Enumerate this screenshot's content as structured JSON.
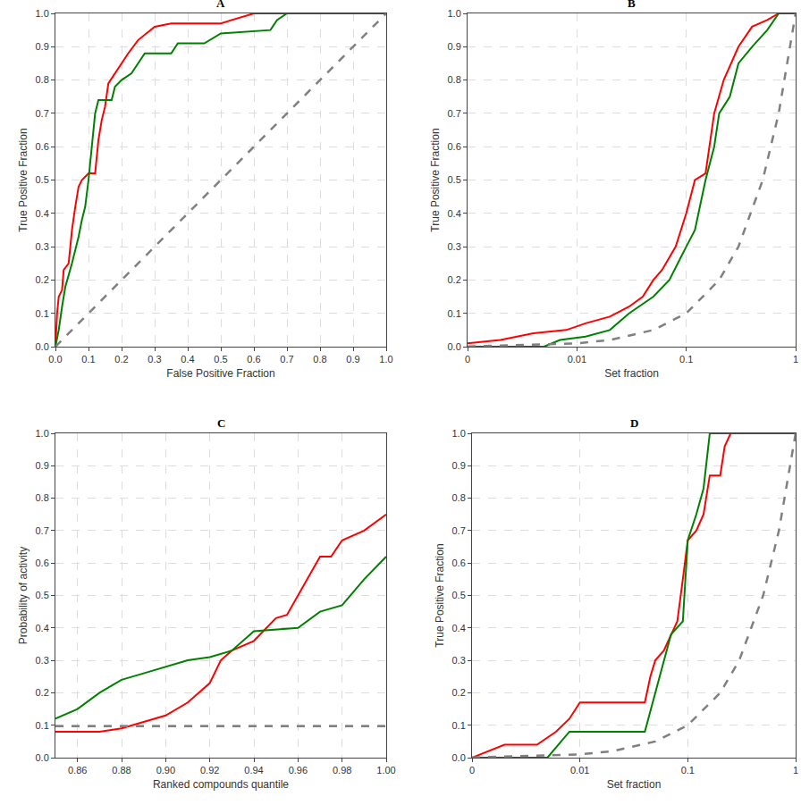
{
  "chart_data": [
    {
      "type": "line",
      "title": "A",
      "x_label": "False Positive Fraction",
      "y_label": "True Positive Fraction",
      "xlim": [
        0,
        1
      ],
      "ylim": [
        0,
        1
      ],
      "grid": true,
      "xticks": [
        {
          "value": 0,
          "label": "0.0"
        },
        0.1,
        0.2,
        0.3,
        0.4,
        0.5,
        0.6,
        0.7,
        0.8,
        0.9,
        {
          "value": 1,
          "label": "1.0"
        }
      ],
      "yticks": [
        {
          "value": 0,
          "label": "0.0"
        },
        0.1,
        0.2,
        0.3,
        0.4,
        0.5,
        0.6,
        0.7,
        0.8,
        0.9,
        {
          "value": 1,
          "label": "1.0"
        }
      ],
      "series": [
        {
          "color": "#ff0000",
          "line_style": "solid",
          "x": [
            0,
            0.005,
            0.01,
            0.02,
            0.025,
            0.04,
            0.045,
            0.05,
            0.06,
            0.07,
            0.08,
            0.1,
            0.12,
            0.13,
            0.14,
            0.15,
            0.16,
            0.18,
            0.2,
            0.22,
            0.25,
            0.3,
            0.35,
            0.5,
            0.6,
            1
          ],
          "values": [
            0,
            0.1,
            0.15,
            0.17,
            0.23,
            0.25,
            0.3,
            0.35,
            0.42,
            0.48,
            0.5,
            0.52,
            0.52,
            0.62,
            0.68,
            0.72,
            0.79,
            0.82,
            0.85,
            0.88,
            0.92,
            0.96,
            0.97,
            0.97,
            1,
            1
          ]
        },
        {
          "color": "#008000",
          "line_style": "solid",
          "x": [
            0,
            0.01,
            0.02,
            0.03,
            0.05,
            0.07,
            0.08,
            0.09,
            0.1,
            0.11,
            0.12,
            0.13,
            0.17,
            0.18,
            0.2,
            0.23,
            0.27,
            0.35,
            0.37,
            0.45,
            0.5,
            0.65,
            0.67,
            0.7,
            1
          ],
          "values": [
            0,
            0.05,
            0.12,
            0.18,
            0.25,
            0.33,
            0.38,
            0.42,
            0.5,
            0.6,
            0.7,
            0.74,
            0.74,
            0.78,
            0.8,
            0.82,
            0.88,
            0.88,
            0.91,
            0.91,
            0.94,
            0.95,
            0.98,
            1,
            1
          ]
        },
        {
          "color": "#808080",
          "line_style": "dash",
          "x": [
            0,
            1
          ],
          "values": [
            0,
            1
          ]
        }
      ]
    },
    {
      "type": "line",
      "title": "B",
      "x_label": "Set fraction",
      "y_label": "True Positive Fraction",
      "log": "x",
      "xlim": [
        0.001,
        1
      ],
      "ylim": [
        0,
        1
      ],
      "grid": true,
      "xticks": [
        {
          "value": 0.001,
          "label": "0"
        },
        0.01,
        0.1,
        1
      ],
      "yticks": [
        {
          "value": 0,
          "label": "0.0"
        },
        0.1,
        0.2,
        0.3,
        0.4,
        0.5,
        0.6,
        0.7,
        0.8,
        0.9,
        {
          "value": 1,
          "label": "1.0"
        }
      ],
      "series": [
        {
          "color": "#ff0000",
          "line_style": "solid",
          "x": [
            0.001,
            0.002,
            0.004,
            0.008,
            0.012,
            0.02,
            0.03,
            0.04,
            0.05,
            0.06,
            0.08,
            0.1,
            0.12,
            0.15,
            0.18,
            0.22,
            0.3,
            0.4,
            0.55,
            0.7,
            1
          ],
          "values": [
            0.01,
            0.02,
            0.04,
            0.05,
            0.07,
            0.09,
            0.12,
            0.15,
            0.2,
            0.23,
            0.3,
            0.4,
            0.5,
            0.52,
            0.7,
            0.8,
            0.9,
            0.96,
            0.98,
            1,
            1
          ]
        },
        {
          "color": "#008000",
          "line_style": "solid",
          "x": [
            0.001,
            0.005,
            0.007,
            0.012,
            0.02,
            0.03,
            0.05,
            0.07,
            0.1,
            0.12,
            0.15,
            0.18,
            0.2,
            0.25,
            0.3,
            0.4,
            0.55,
            0.7,
            1
          ],
          "values": [
            0,
            0,
            0.02,
            0.03,
            0.05,
            0.1,
            0.15,
            0.2,
            0.3,
            0.35,
            0.5,
            0.6,
            0.7,
            0.75,
            0.85,
            0.9,
            0.95,
            1,
            1
          ]
        },
        {
          "color": "#808080",
          "line_style": "dash",
          "x": [
            0.001,
            0.01,
            0.02,
            0.05,
            0.1,
            0.2,
            0.3,
            0.5,
            0.7,
            1
          ],
          "values": [
            0.001,
            0.01,
            0.02,
            0.05,
            0.1,
            0.2,
            0.3,
            0.5,
            0.7,
            1
          ]
        }
      ]
    },
    {
      "type": "line",
      "title": "C",
      "x_label": "Ranked compounds quantile",
      "y_label": "Probability of activity",
      "xlim": [
        0.85,
        1
      ],
      "ylim": [
        0,
        1
      ],
      "grid": true,
      "xticks": [
        0.86,
        0.88,
        {
          "value": 0.9,
          "label": "0.90"
        },
        0.92,
        0.94,
        0.96,
        0.98,
        {
          "value": 1,
          "label": "1.00"
        }
      ],
      "yticks": [
        {
          "value": 0,
          "label": "0.0"
        },
        0.1,
        0.2,
        0.3,
        0.4,
        0.5,
        0.6,
        0.7,
        0.8,
        0.9,
        {
          "value": 1,
          "label": "1.0"
        }
      ],
      "series": [
        {
          "color": "#ff0000",
          "line_style": "solid",
          "x": [
            0.85,
            0.87,
            0.88,
            0.89,
            0.9,
            0.91,
            0.92,
            0.925,
            0.93,
            0.94,
            0.95,
            0.955,
            0.96,
            0.97,
            0.975,
            0.98,
            0.99,
            1
          ],
          "values": [
            0.08,
            0.08,
            0.09,
            0.11,
            0.13,
            0.17,
            0.23,
            0.3,
            0.33,
            0.36,
            0.43,
            0.44,
            0.5,
            0.62,
            0.62,
            0.67,
            0.7,
            0.75
          ]
        },
        {
          "color": "#008000",
          "line_style": "solid",
          "x": [
            0.85,
            0.86,
            0.87,
            0.88,
            0.89,
            0.9,
            0.91,
            0.92,
            0.93,
            0.94,
            0.96,
            0.97,
            0.98,
            0.99,
            1
          ],
          "values": [
            0.12,
            0.15,
            0.2,
            0.24,
            0.26,
            0.28,
            0.3,
            0.31,
            0.33,
            0.39,
            0.4,
            0.45,
            0.47,
            0.55,
            0.62
          ]
        },
        {
          "color": "#808080",
          "line_style": "dash",
          "x": [
            0.85,
            1
          ],
          "values": [
            0.097,
            0.097
          ]
        }
      ]
    },
    {
      "type": "line",
      "title": "D",
      "x_label": "Set fraction",
      "y_label": "True Positive Fraction",
      "log": "x",
      "xlim": [
        0.001,
        1
      ],
      "ylim": [
        0,
        1
      ],
      "grid": true,
      "xticks": [
        {
          "value": 0.001,
          "label": "0"
        },
        0.01,
        0.1,
        1
      ],
      "yticks": [
        {
          "value": 0,
          "label": "0.0"
        },
        0.1,
        0.2,
        0.3,
        0.4,
        0.5,
        0.6,
        0.7,
        0.8,
        0.9,
        {
          "value": 1,
          "label": "1.0"
        }
      ],
      "series": [
        {
          "color": "#ff0000",
          "line_style": "solid",
          "x": [
            0.001,
            0.002,
            0.004,
            0.006,
            0.008,
            0.01,
            0.02,
            0.04,
            0.045,
            0.05,
            0.06,
            0.07,
            0.08,
            0.09,
            0.1,
            0.12,
            0.14,
            0.16,
            0.2,
            0.22,
            0.25,
            1
          ],
          "values": [
            0,
            0.04,
            0.04,
            0.08,
            0.12,
            0.17,
            0.17,
            0.17,
            0.25,
            0.3,
            0.33,
            0.38,
            0.42,
            0.55,
            0.67,
            0.7,
            0.75,
            0.87,
            0.87,
            0.96,
            1,
            1
          ]
        },
        {
          "color": "#008000",
          "line_style": "solid",
          "x": [
            0.001,
            0.005,
            0.008,
            0.04,
            0.05,
            0.06,
            0.07,
            0.09,
            0.1,
            0.12,
            0.14,
            0.16,
            1
          ],
          "values": [
            0,
            0,
            0.08,
            0.08,
            0.2,
            0.3,
            0.38,
            0.42,
            0.67,
            0.75,
            0.83,
            1,
            1
          ]
        },
        {
          "color": "#808080",
          "line_style": "dash",
          "x": [
            0.001,
            0.01,
            0.02,
            0.05,
            0.1,
            0.2,
            0.3,
            0.5,
            0.7,
            1
          ],
          "values": [
            0.001,
            0.01,
            0.02,
            0.05,
            0.1,
            0.2,
            0.3,
            0.5,
            0.7,
            1
          ]
        }
      ]
    }
  ]
}
